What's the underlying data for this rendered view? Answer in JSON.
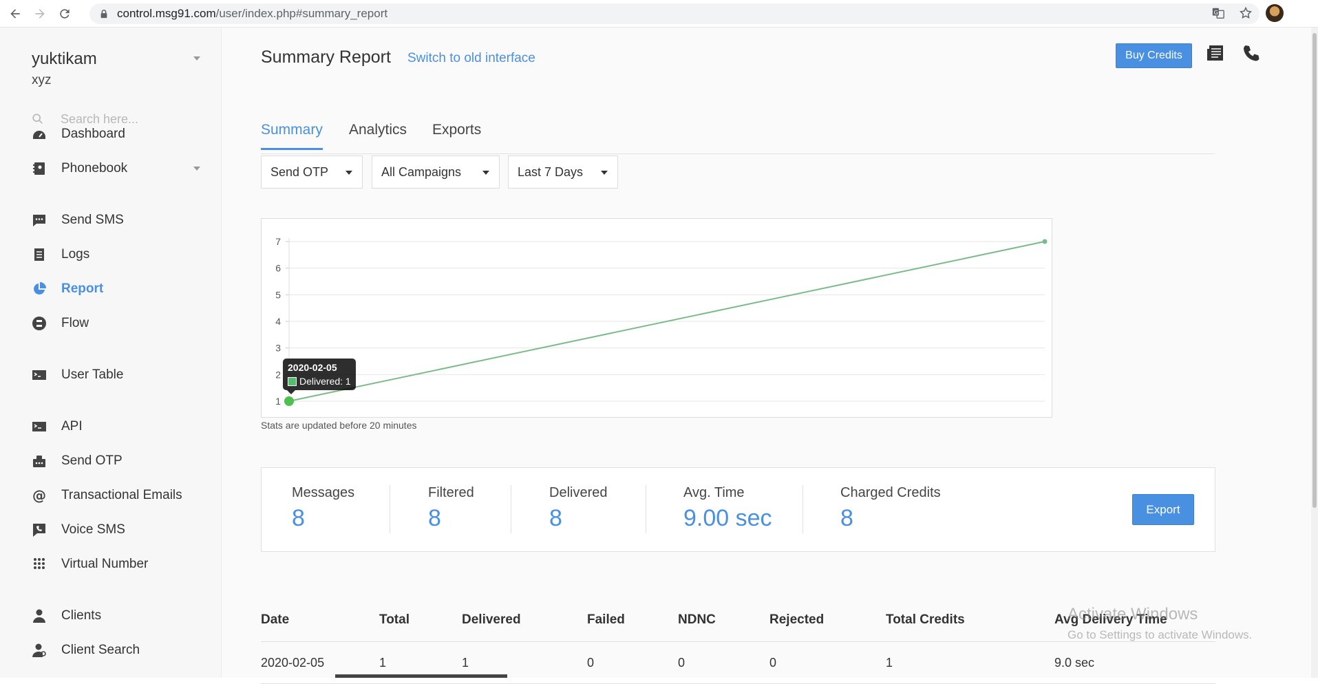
{
  "browser": {
    "url_host": "control.msg91.com",
    "url_path": "/user/index.php#summary_report"
  },
  "sidebar": {
    "account_name": "yuktikam",
    "account_sub": "xyz",
    "search_placeholder": "Search here...",
    "items": [
      {
        "label": "Dashboard",
        "icon": "dashboard-icon"
      },
      {
        "label": "Phonebook",
        "icon": "phonebook-icon"
      },
      {
        "label": "Send SMS",
        "icon": "sms-icon"
      },
      {
        "label": "Logs",
        "icon": "logs-icon"
      },
      {
        "label": "Report",
        "icon": "pie-chart-icon",
        "active": true
      },
      {
        "label": "Flow",
        "icon": "flow-icon"
      },
      {
        "label": "User Table",
        "icon": "table-icon"
      },
      {
        "label": "API",
        "icon": "terminal-icon"
      },
      {
        "label": "Send OTP",
        "icon": "otp-icon"
      },
      {
        "label": "Transactional Emails",
        "icon": "at-icon"
      },
      {
        "label": "Voice SMS",
        "icon": "voice-icon"
      },
      {
        "label": "Virtual Number",
        "icon": "dialpad-icon"
      },
      {
        "label": "Clients",
        "icon": "clients-icon"
      },
      {
        "label": "Client Search",
        "icon": "client-search-icon"
      }
    ]
  },
  "header": {
    "title": "Summary Report",
    "switch_link": "Switch to old interface",
    "buy_credits": "Buy Credits"
  },
  "tabs": [
    "Summary",
    "Analytics",
    "Exports"
  ],
  "filters": {
    "type": "Send OTP",
    "campaign": "All Campaigns",
    "range": "Last 7 Days"
  },
  "chart_data": {
    "type": "line",
    "x": [
      "2020-02-05",
      ""
    ],
    "series": [
      {
        "name": "Delivered",
        "values": [
          1,
          7
        ]
      }
    ],
    "y_ticks": [
      1,
      2,
      3,
      4,
      5,
      6,
      7
    ],
    "ylim": [
      1,
      7
    ],
    "grid": true,
    "color": "#7cba8c",
    "tooltip": {
      "date": "2020-02-05",
      "label": "Delivered: 1"
    }
  },
  "stats_note": "Stats are updated before 20 minutes",
  "stats": [
    {
      "label": "Messages",
      "value": "8"
    },
    {
      "label": "Filtered",
      "value": "8"
    },
    {
      "label": "Delivered",
      "value": "8"
    },
    {
      "label": "Avg. Time",
      "value": "9.00 sec"
    },
    {
      "label": "Charged Credits",
      "value": "8"
    }
  ],
  "export_label": "Export",
  "table": {
    "columns": [
      "Date",
      "Total",
      "Delivered",
      "Failed",
      "NDNC",
      "Rejected",
      "Total Credits",
      "Avg Delivery Time"
    ],
    "rows": [
      [
        "2020-02-05",
        "1",
        "1",
        "0",
        "0",
        "0",
        "1",
        "9.0 sec"
      ]
    ]
  },
  "watermark": {
    "line1": "Activate Windows",
    "line2": "Go to Settings to activate Windows."
  },
  "colors": {
    "accent": "#4a90e2",
    "line": "#7cba8c"
  }
}
